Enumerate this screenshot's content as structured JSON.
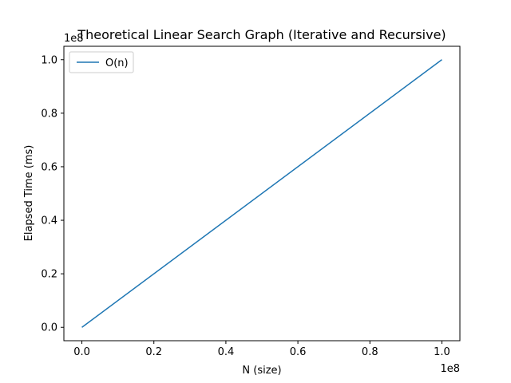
{
  "chart_data": {
    "type": "line",
    "title": "Theoretical Linear Search Graph (Iterative and Recursive)",
    "xlabel": "N (size)",
    "ylabel": "Elapsed Time (ms)",
    "x_offset_label": "1e8",
    "y_offset_label": "1e8",
    "xlim": [
      -0.05,
      1.05
    ],
    "ylim": [
      -0.05,
      1.05
    ],
    "x_ticks": [
      0.0,
      0.2,
      0.4,
      0.6,
      0.8,
      1.0
    ],
    "y_ticks": [
      0.0,
      0.2,
      0.4,
      0.6,
      0.8,
      1.0
    ],
    "x_tick_labels": [
      "0.0",
      "0.2",
      "0.4",
      "0.6",
      "0.8",
      "1.0"
    ],
    "y_tick_labels": [
      "0.0",
      "0.2",
      "0.4",
      "0.6",
      "0.8",
      "1.0"
    ],
    "grid": false,
    "legend_position": "upper-left",
    "series": [
      {
        "name": "O(n)",
        "color": "#1f77b4",
        "x": [
          0.0,
          1.0
        ],
        "y": [
          0.0,
          1.0
        ]
      }
    ]
  }
}
